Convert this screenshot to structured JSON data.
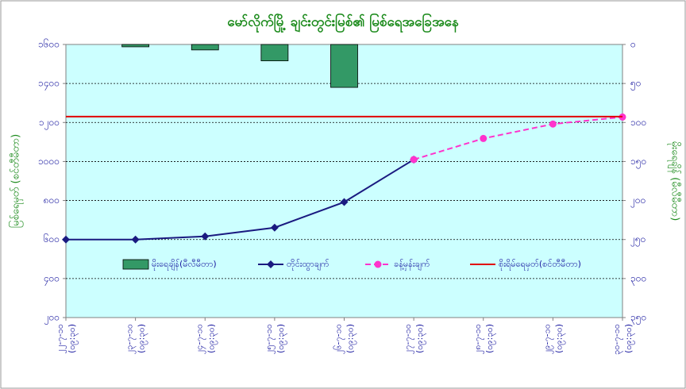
{
  "chart_data": {
    "type": "bar-line",
    "title": "မော်လိုက်မြို့ ချင်းတွင်းမြစ်၏ မြစ်ရေအခြေအနေ",
    "y_label": "မြစ်ရေမှတ် (စင်တီမီတာ)",
    "y2_label": "မိုးရေချိန် (မီလီမီတာ)",
    "categories": [
      [
        "၂၂-၇-၁၀",
        "(၀၉:၃၀)"
      ],
      [
        "၂၃-၇-၁၀",
        "(၀၉:၃၀)"
      ],
      [
        "၂၄-၇-၁၀",
        "(၀၉:၃၀)"
      ],
      [
        "၂၅-၇-၁၀",
        "(၀၉:၃၀)"
      ],
      [
        "၂၆-၇-၁၀",
        "(၀၉:၃၀)"
      ],
      [
        "၂၇-၇-၁၀",
        "(၀၉:၃၀)"
      ],
      [
        "၂၈-၇-၁၀",
        "(၀၉:၃၀)"
      ],
      [
        "၂၉-၇-၁၀",
        "(၀၉:၃၀)"
      ],
      [
        "၃၀-၇-၁၀",
        "(၀၉:၃၀)"
      ]
    ],
    "series": [
      {
        "name": "မိုးရေချိန်(မီလီမီတာ)",
        "type": "bar",
        "axis": "y2",
        "color": "#339966",
        "values": [
          0,
          3,
          7,
          21,
          55,
          null,
          null,
          null,
          null
        ]
      },
      {
        "name": "တိုင်းထွာချက်",
        "type": "line",
        "marker": "diamond",
        "color": "#1a1a80",
        "values": [
          600,
          600,
          616,
          661,
          792,
          1010,
          null,
          null,
          null
        ]
      },
      {
        "name": "ခန့်မှန်းချက်",
        "type": "line",
        "marker": "circle",
        "dashed": true,
        "color": "#ff33cc",
        "values": [
          null,
          null,
          null,
          null,
          null,
          1010,
          1118,
          1192,
          1228
        ]
      },
      {
        "name": "စိုးရိမ်ရေမှတ်(စင်တီမီတာ)",
        "type": "line",
        "color": "#e00000",
        "values": [
          1230,
          1230,
          1230,
          1230,
          1230,
          1230,
          1230,
          1230,
          1230
        ]
      }
    ],
    "ylim": [
      200,
      1600
    ],
    "yticks": [
      {
        "value": 200,
        "label": "၂၀၀"
      },
      {
        "value": 400,
        "label": "၄၀၀"
      },
      {
        "value": 600,
        "label": "၆၀၀"
      },
      {
        "value": 800,
        "label": "၈၀၀"
      },
      {
        "value": 1000,
        "label": "၁၀၀၀"
      },
      {
        "value": 1200,
        "label": "၁၂၀၀"
      },
      {
        "value": 1400,
        "label": "၁၄၀၀"
      },
      {
        "value": 1600,
        "label": "၁၆၀၀"
      }
    ],
    "y2lim": [
      0,
      350
    ],
    "y2_inverted": true,
    "y2ticks": [
      {
        "value": 0,
        "label": "၀"
      },
      {
        "value": 50,
        "label": "၅၀"
      },
      {
        "value": 100,
        "label": "၁၀၀"
      },
      {
        "value": 150,
        "label": "၁၅၀"
      },
      {
        "value": 200,
        "label": "၂၀၀"
      },
      {
        "value": 250,
        "label": "၂၅၀"
      },
      {
        "value": 300,
        "label": "၃၀၀"
      },
      {
        "value": 350,
        "label": "၃၅၀"
      }
    ],
    "grid": true
  }
}
